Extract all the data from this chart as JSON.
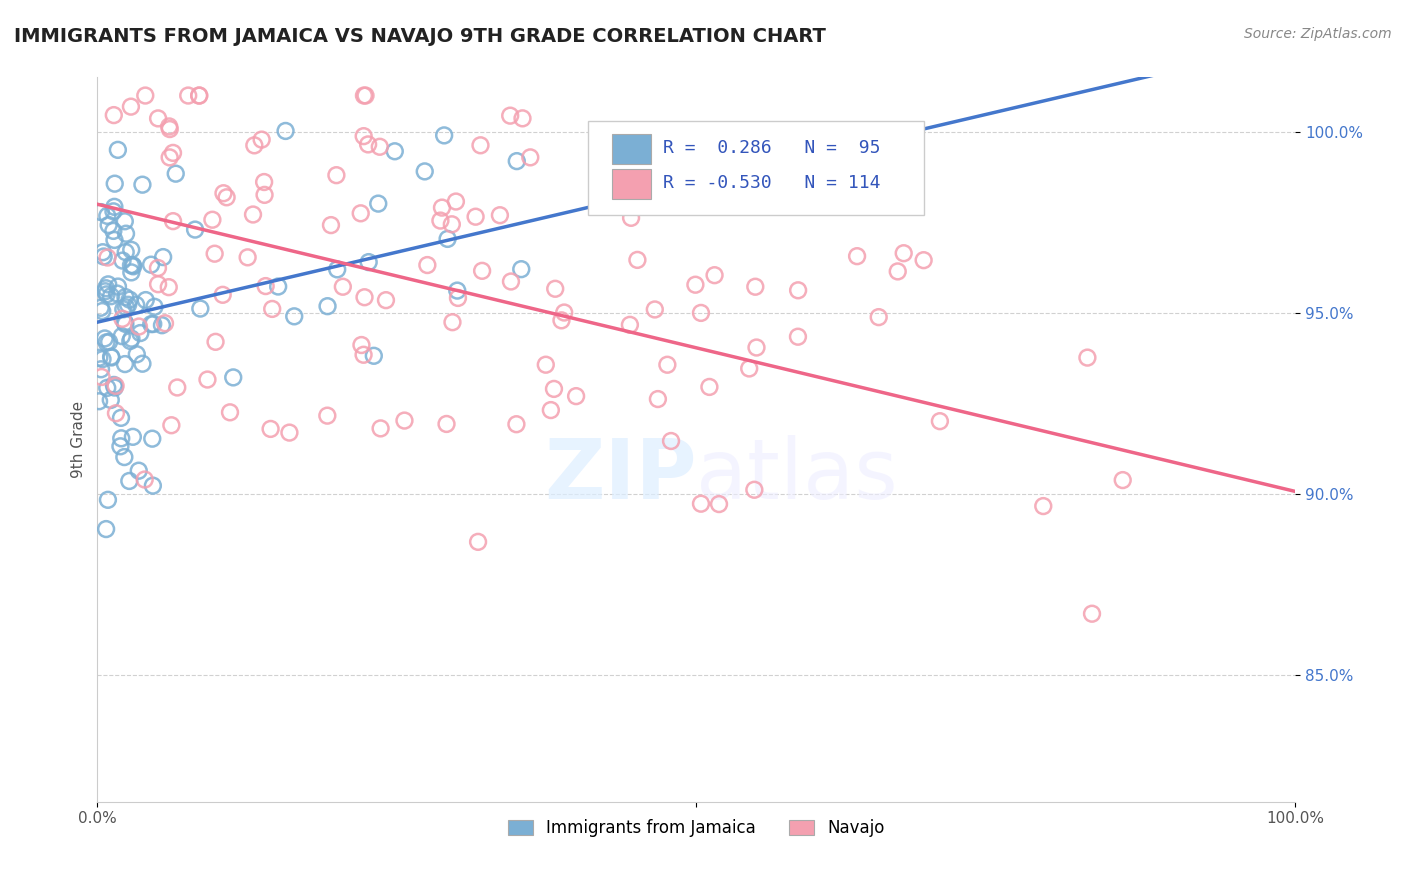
{
  "title": "IMMIGRANTS FROM JAMAICA VS NAVAJO 9TH GRADE CORRELATION CHART",
  "source": "Source: ZipAtlas.com",
  "ylabel": "9th Grade",
  "ytick_labels": [
    "85.0%",
    "90.0%",
    "95.0%",
    "100.0%"
  ],
  "ytick_values": [
    0.85,
    0.9,
    0.95,
    1.0
  ],
  "legend_blue_r": "0.286",
  "legend_blue_n": "95",
  "legend_pink_r": "-0.530",
  "legend_pink_n": "114",
  "legend_blue_label": "Immigrants from Jamaica",
  "legend_pink_label": "Navajo",
  "blue_color": "#7BAFD4",
  "pink_color": "#F4A0B0",
  "blue_line_color": "#4477CC",
  "pink_line_color": "#EE6688",
  "background_color": "#FFFFFF",
  "blue_r": 0.286,
  "blue_n": 95,
  "pink_r": -0.53,
  "pink_n": 114,
  "xlim": [
    0.0,
    1.0
  ],
  "ylim": [
    0.815,
    1.015
  ]
}
